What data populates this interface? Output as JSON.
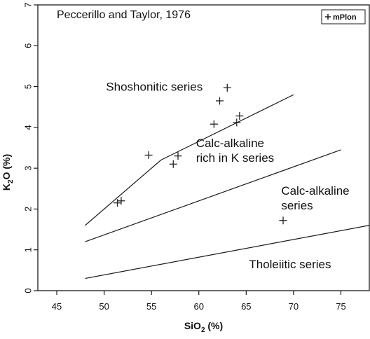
{
  "chart_data": {
    "type": "scatter",
    "title": "Peccerillo and Taylor, 1976",
    "xlabel": "SiO",
    "xlabel_sub": "2",
    "xlabel_tail": " (%)",
    "ylabel": "K",
    "ylabel_sub": "2",
    "ylabel_tail": "O (%)",
    "xlim": [
      43,
      78
    ],
    "ylim": [
      0,
      7
    ],
    "xticks": [
      45,
      50,
      55,
      60,
      65,
      70,
      75
    ],
    "yticks": [
      0,
      1,
      2,
      3,
      4,
      5,
      6,
      7
    ],
    "grid": false,
    "legend": {
      "position": "top-right",
      "marker": "+",
      "label": "mPlon"
    },
    "series": [
      {
        "name": "mPlon",
        "marker": "+",
        "points": [
          {
            "x": 51.4,
            "y": 2.15
          },
          {
            "x": 51.8,
            "y": 2.2
          },
          {
            "x": 54.7,
            "y": 3.32
          },
          {
            "x": 57.3,
            "y": 3.1
          },
          {
            "x": 57.8,
            "y": 3.3
          },
          {
            "x": 61.6,
            "y": 4.08
          },
          {
            "x": 62.2,
            "y": 4.65
          },
          {
            "x": 63.0,
            "y": 4.97
          },
          {
            "x": 64.0,
            "y": 4.12
          },
          {
            "x": 64.3,
            "y": 4.28
          },
          {
            "x": 68.9,
            "y": 1.72
          }
        ]
      }
    ],
    "boundaries": [
      {
        "points": [
          [
            48,
            1.6
          ],
          [
            56,
            3.2
          ],
          [
            70,
            4.8
          ]
        ]
      },
      {
        "points": [
          [
            48,
            1.2
          ],
          [
            75,
            3.45
          ]
        ]
      },
      {
        "points": [
          [
            48,
            0.3
          ],
          [
            78,
            1.6
          ]
        ]
      }
    ],
    "region_labels": [
      {
        "lines": [
          "Shoshonitic series"
        ],
        "x": 50.2,
        "y": 4.9
      },
      {
        "lines": [
          "Calc-alkaline",
          "rich in K series"
        ],
        "x": 59.7,
        "y": 3.52
      },
      {
        "lines": [
          "Calc-alkaline",
          "series"
        ],
        "x": 68.7,
        "y": 2.35
      },
      {
        "lines": [
          "Tholeiitic series"
        ],
        "x": 65.3,
        "y": 0.55
      }
    ]
  }
}
